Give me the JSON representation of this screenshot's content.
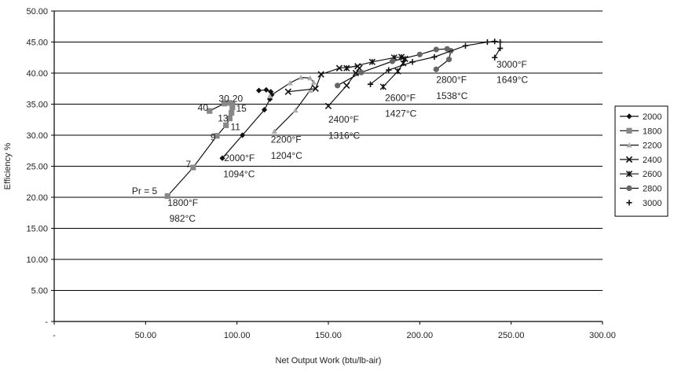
{
  "chart_data": {
    "type": "line",
    "title": "",
    "xlabel": "Net Output Work (btu/lb-air)",
    "ylabel": "Efficiency %",
    "xlim": [
      0,
      300
    ],
    "ylim": [
      0,
      50
    ],
    "x_ticks": [
      {
        "v": 0,
        "label": "-"
      },
      {
        "v": 50,
        "label": "50.00"
      },
      {
        "v": 100,
        "label": "100.00"
      },
      {
        "v": 150,
        "label": "150.00"
      },
      {
        "v": 200,
        "label": "200.00"
      },
      {
        "v": 250,
        "label": "250.00"
      },
      {
        "v": 300,
        "label": "300.00"
      }
    ],
    "y_ticks": [
      {
        "v": 0,
        "label": "-"
      },
      {
        "v": 5,
        "label": "5.00"
      },
      {
        "v": 10,
        "label": "10.00"
      },
      {
        "v": 15,
        "label": "15.00"
      },
      {
        "v": 20,
        "label": "20.00"
      },
      {
        "v": 25,
        "label": "25.00"
      },
      {
        "v": 30,
        "label": "30.00"
      },
      {
        "v": 35,
        "label": "35.00"
      },
      {
        "v": 40,
        "label": "40.00"
      },
      {
        "v": 45,
        "label": "45.00"
      },
      {
        "v": 50,
        "label": "50.00"
      }
    ],
    "grid": "horizontal",
    "legend": "right",
    "series": [
      {
        "name": "2000",
        "marker": "diamond",
        "color": "#111111",
        "points": [
          [
            92,
            26.3
          ],
          [
            103,
            30.0
          ],
          [
            115,
            34.1
          ],
          [
            118,
            35.8
          ],
          [
            119,
            36.5
          ],
          [
            118.5,
            37.0
          ],
          [
            116,
            37.3
          ],
          [
            112,
            37.2
          ]
        ]
      },
      {
        "name": "1800",
        "marker": "square",
        "color": "#888888",
        "points": [
          [
            62,
            20.2
          ],
          [
            76,
            24.8
          ],
          [
            89,
            29.9
          ],
          [
            94,
            31.6
          ],
          [
            96,
            32.7
          ],
          [
            97,
            33.6
          ],
          [
            97.5,
            34.5
          ],
          [
            97.5,
            35.0
          ],
          [
            96,
            35.2
          ],
          [
            93,
            35.1
          ],
          [
            85,
            33.9
          ]
        ]
      },
      {
        "name": "2200",
        "marker": "triangle",
        "color": "#aaaaaa",
        "points": [
          [
            120.5,
            30.6
          ],
          [
            132,
            34.0
          ],
          [
            140,
            37.2
          ],
          [
            142,
            38.5
          ],
          [
            140,
            39.2
          ],
          [
            135,
            39.3
          ],
          [
            129,
            38.4
          ],
          [
            118,
            36.3
          ]
        ]
      },
      {
        "name": "2400",
        "marker": "x",
        "color": "#111111",
        "points": [
          [
            150,
            34.7
          ],
          [
            160,
            38.0
          ],
          [
            165,
            40.0
          ],
          [
            167,
            40.8
          ],
          [
            166,
            41.1
          ],
          [
            156,
            40.8
          ],
          [
            146,
            39.8
          ],
          [
            143,
            37.5
          ],
          [
            128,
            37.0
          ]
        ]
      },
      {
        "name": "2600",
        "marker": "star",
        "color": "#111111",
        "points": [
          [
            180,
            37.8
          ],
          [
            188,
            40.3
          ],
          [
            191,
            41.6
          ],
          [
            192,
            42.3
          ],
          [
            190,
            42.6
          ],
          [
            186,
            42.5
          ],
          [
            174,
            41.8
          ],
          [
            160,
            40.8
          ]
        ]
      },
      {
        "name": "2800",
        "marker": "circle",
        "color": "#666666",
        "points": [
          [
            209,
            40.6
          ],
          [
            216,
            42.2
          ],
          [
            217,
            43.6
          ],
          [
            215,
            43.9
          ],
          [
            209,
            43.8
          ],
          [
            200,
            43.0
          ],
          [
            185,
            41.9
          ],
          [
            168,
            40.1
          ],
          [
            155,
            38.0
          ]
        ]
      },
      {
        "name": "3000",
        "marker": "plus",
        "color": "#111111",
        "points": [
          [
            241,
            42.5
          ],
          [
            244,
            44.0
          ],
          [
            244,
            45.0
          ],
          [
            241,
            45.1
          ],
          [
            237,
            45.0
          ],
          [
            225,
            44.4
          ],
          [
            208,
            42.6
          ],
          [
            196,
            41.8
          ],
          [
            183,
            40.5
          ],
          [
            173,
            38.2
          ]
        ]
      }
    ],
    "annotations": [
      {
        "text": "30",
        "x": 90,
        "y": 35.4
      },
      {
        "text": "20",
        "x": 97.5,
        "y": 35.4
      },
      {
        "text": "40",
        "x": 78.5,
        "y": 33.9
      },
      {
        "text": "15",
        "x": 99.5,
        "y": 33.8
      },
      {
        "text": "13",
        "x": 89.5,
        "y": 32.2
      },
      {
        "text": "11",
        "x": 96.5,
        "y": 30.8
      },
      {
        "text": "9",
        "x": 85.5,
        "y": 29.2
      },
      {
        "text": "7",
        "x": 72,
        "y": 24.8
      },
      {
        "text": "Pr = 5",
        "x": 42.5,
        "y": 20.5
      },
      {
        "text": "1800°F",
        "x": 62,
        "y": 18.6
      },
      {
        "text": "982°C",
        "x": 63,
        "y": 16.1
      },
      {
        "text": "2000°F",
        "x": 93,
        "y": 25.8
      },
      {
        "text": "1094°C",
        "x": 92.5,
        "y": 23.2
      },
      {
        "text": "2200°F",
        "x": 118.5,
        "y": 28.8
      },
      {
        "text": "1204°C",
        "x": 118.5,
        "y": 26.2
      },
      {
        "text": "2400°F",
        "x": 150,
        "y": 32.0
      },
      {
        "text": "1316°C",
        "x": 150,
        "y": 29.4
      },
      {
        "text": "2600°F",
        "x": 181,
        "y": 35.5
      },
      {
        "text": "1427°C",
        "x": 181,
        "y": 33.0
      },
      {
        "text": "2800°F",
        "x": 209,
        "y": 38.4
      },
      {
        "text": "1538°C",
        "x": 209,
        "y": 35.8
      },
      {
        "text": "3000°F",
        "x": 242,
        "y": 40.9
      },
      {
        "text": "1649°C",
        "x": 242,
        "y": 38.4
      }
    ]
  }
}
